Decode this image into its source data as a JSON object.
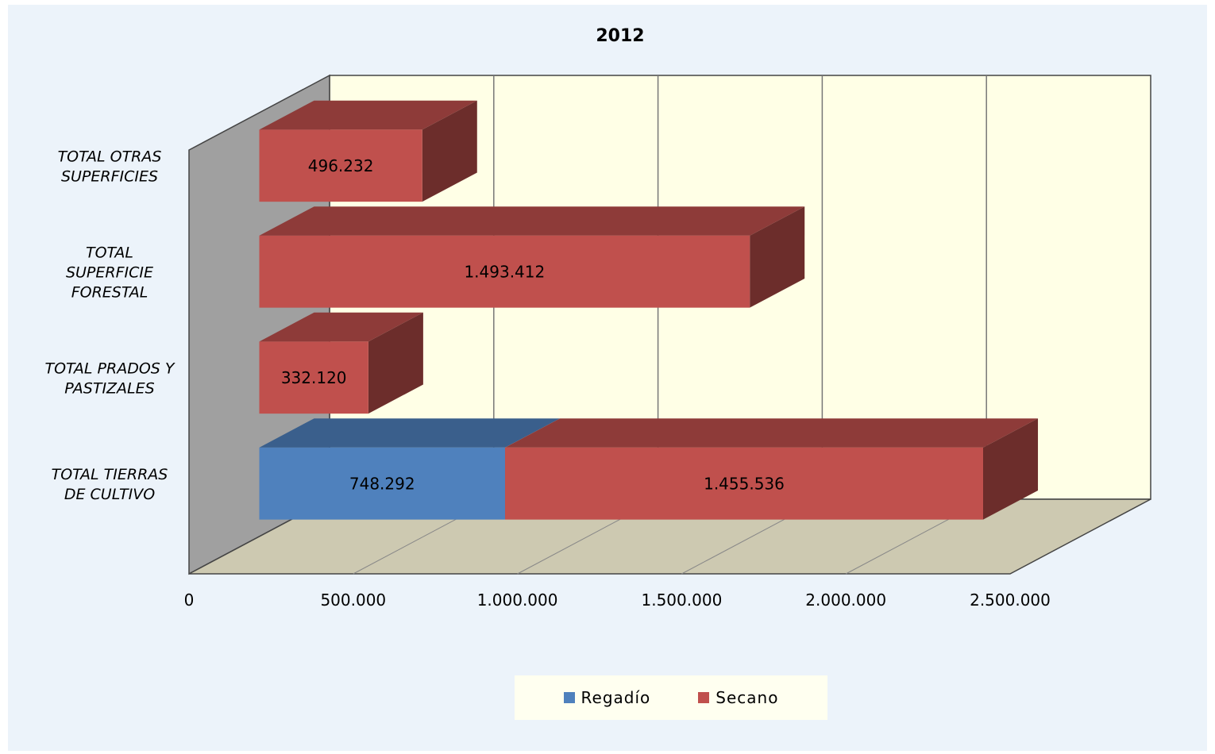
{
  "chart_data": {
    "type": "bar",
    "orientation": "horizontal",
    "stacked": true,
    "style": "3d",
    "title": "2012",
    "categories": [
      "TOTAL TIERRAS DE CULTIVO",
      "TOTAL PRADOS Y PASTIZALES",
      "TOTAL SUPERFICIE FORESTAL",
      "TOTAL OTRAS SUPERFICIES"
    ],
    "series": [
      {
        "name": "Regadío",
        "color": "#4f81bd",
        "values": [
          748292,
          0,
          0,
          0
        ],
        "labels": [
          "748.292",
          "",
          "",
          ""
        ]
      },
      {
        "name": "Secano",
        "color": "#c0504d",
        "values": [
          1455536,
          332120,
          1493412,
          496232
        ],
        "labels": [
          "1.455.536",
          "332.120",
          "1.493.412",
          "496.232"
        ]
      }
    ],
    "xlim": [
      0,
      2500000
    ],
    "x_ticks": [
      0,
      500000,
      1000000,
      1500000,
      2000000,
      2500000
    ],
    "x_tick_labels": [
      "0",
      "500.000",
      "1.000.000",
      "1.500.000",
      "2.000.000",
      "2.500.000"
    ],
    "grid": true,
    "legend": "bottom"
  }
}
